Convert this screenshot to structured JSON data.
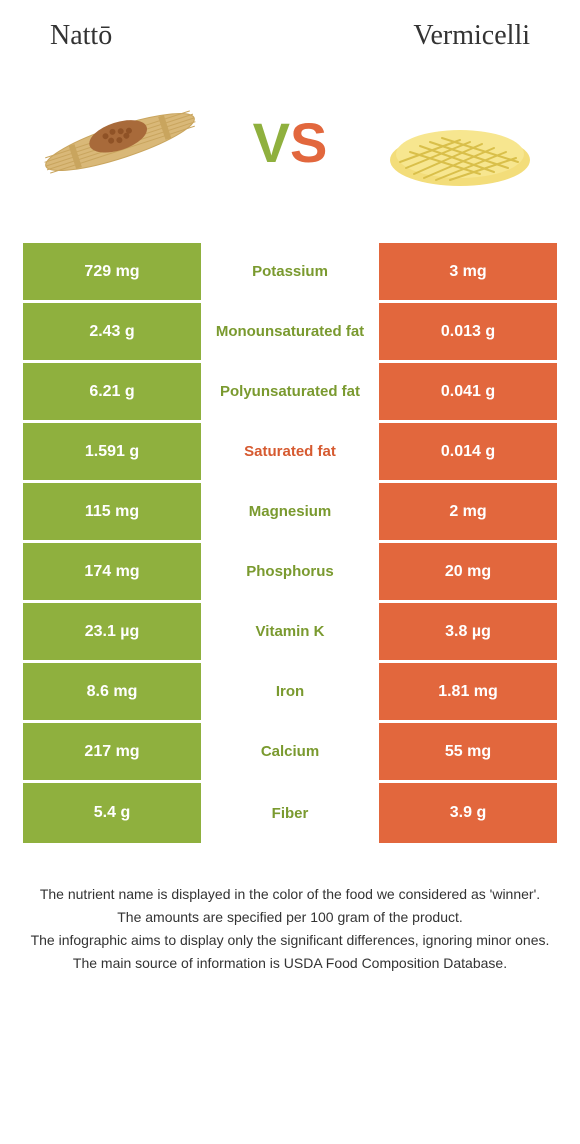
{
  "colors": {
    "left_bg": "#8fb03e",
    "right_bg": "#e2673d",
    "left_text": "#7a9a2f",
    "right_text": "#d65a30",
    "body_text": "#333333"
  },
  "header": {
    "left_title": "Nattō",
    "right_title": "Vermicelli",
    "vs_v": "V",
    "vs_s": "S"
  },
  "rows": [
    {
      "left": "729 mg",
      "label": "Potassium",
      "right": "3 mg",
      "winner": "left"
    },
    {
      "left": "2.43 g",
      "label": "Monounsaturated fat",
      "right": "0.013 g",
      "winner": "left"
    },
    {
      "left": "6.21 g",
      "label": "Polyunsaturated fat",
      "right": "0.041 g",
      "winner": "left"
    },
    {
      "left": "1.591 g",
      "label": "Saturated fat",
      "right": "0.014 g",
      "winner": "right"
    },
    {
      "left": "115 mg",
      "label": "Magnesium",
      "right": "2 mg",
      "winner": "left"
    },
    {
      "left": "174 mg",
      "label": "Phosphorus",
      "right": "20 mg",
      "winner": "left"
    },
    {
      "left": "23.1 µg",
      "label": "Vitamin K",
      "right": "3.8 µg",
      "winner": "left"
    },
    {
      "left": "8.6 mg",
      "label": "Iron",
      "right": "1.81 mg",
      "winner": "left"
    },
    {
      "left": "217 mg",
      "label": "Calcium",
      "right": "55 mg",
      "winner": "left"
    },
    {
      "left": "5.4 g",
      "label": "Fiber",
      "right": "3.9 g",
      "winner": "left"
    }
  ],
  "footnotes": [
    "The nutrient name is displayed in the color of the food we considered as 'winner'.",
    "The amounts are specified per 100 gram of the product.",
    "The infographic aims to display only the significant differences, ignoring minor ones.",
    "The main source of information is USDA Food Composition Database."
  ]
}
